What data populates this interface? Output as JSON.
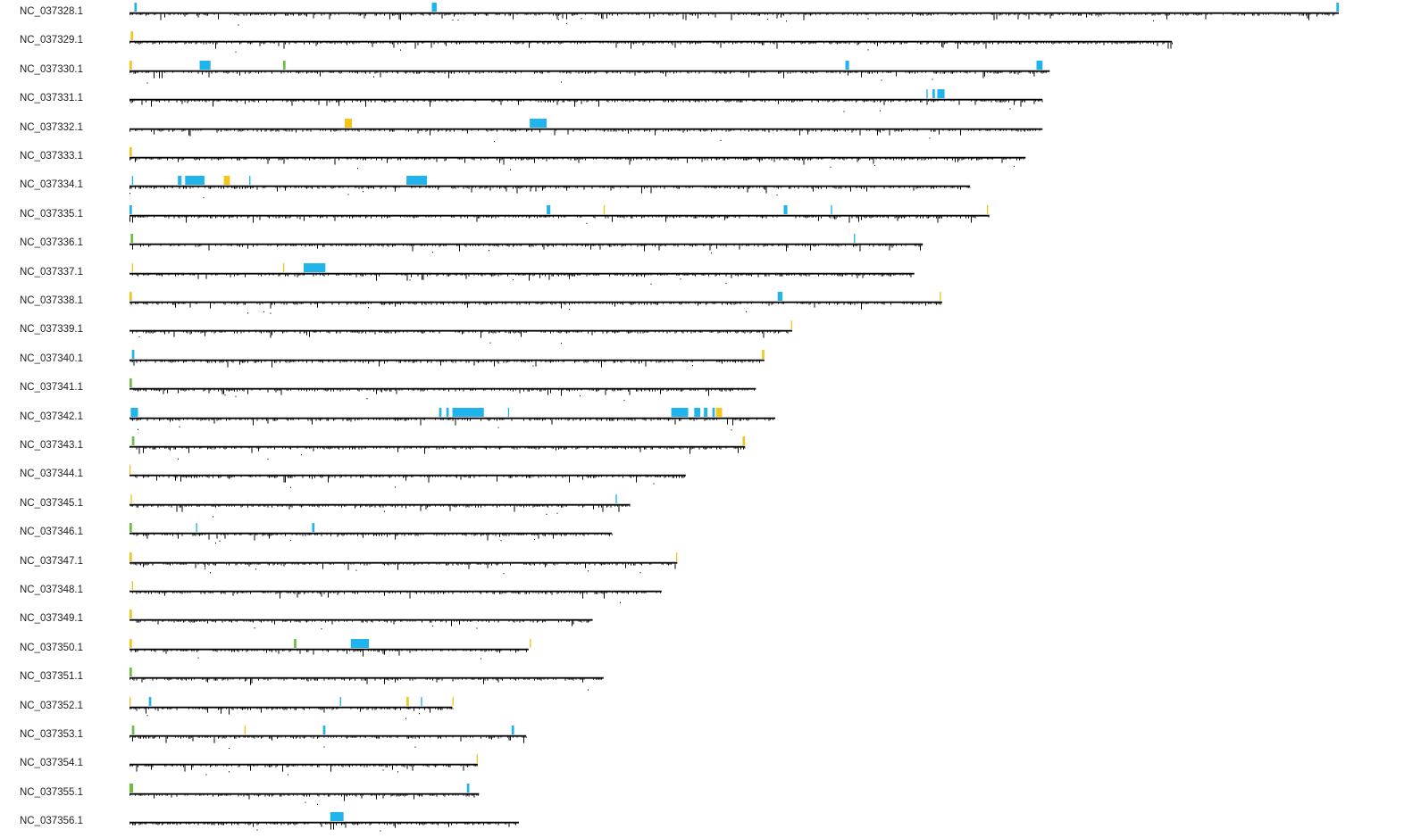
{
  "colors": {
    "axis": "#000000",
    "axis_shadow": "#bfbfbf",
    "depth_marks": "#000000",
    "feature_cyan": "#1fb4ec",
    "feature_yellow": "#f5c518",
    "feature_green": "#6abf3c"
  },
  "scale": {
    "max_length": 1
  },
  "chromosomes": [
    {
      "id": "NC_037328.1",
      "length": 1.0,
      "features": [
        {
          "s": 0.004,
          "e": 0.006,
          "c": "feature_cyan"
        },
        {
          "s": 0.25,
          "e": 0.254,
          "c": "feature_cyan"
        },
        {
          "s": 0.998,
          "e": 1.0,
          "c": "feature_cyan"
        }
      ]
    },
    {
      "id": "NC_037329.1",
      "length": 0.862,
      "features": [
        {
          "s": 0.001,
          "e": 0.003,
          "c": "feature_yellow"
        }
      ]
    },
    {
      "id": "NC_037330.1",
      "length": 0.761,
      "features": [
        {
          "s": 0.0,
          "e": 0.002,
          "c": "feature_yellow"
        },
        {
          "s": 0.058,
          "e": 0.067,
          "c": "feature_cyan"
        },
        {
          "s": 0.127,
          "e": 0.129,
          "c": "feature_green"
        },
        {
          "s": 0.592,
          "e": 0.595,
          "c": "feature_cyan"
        },
        {
          "s": 0.75,
          "e": 0.755,
          "c": "feature_cyan"
        }
      ]
    },
    {
      "id": "NC_037331.1",
      "length": 0.755,
      "features": [
        {
          "s": 0.659,
          "e": 0.66,
          "c": "feature_cyan"
        },
        {
          "s": 0.664,
          "e": 0.666,
          "c": "feature_cyan"
        },
        {
          "s": 0.668,
          "e": 0.674,
          "c": "feature_cyan"
        }
      ]
    },
    {
      "id": "NC_037332.1",
      "length": 0.755,
      "features": [
        {
          "s": 0.178,
          "e": 0.184,
          "c": "feature_yellow"
        },
        {
          "s": 0.331,
          "e": 0.345,
          "c": "feature_cyan"
        }
      ]
    },
    {
      "id": "NC_037333.1",
      "length": 0.741,
      "features": [
        {
          "s": 0.0,
          "e": 0.002,
          "c": "feature_yellow"
        }
      ]
    },
    {
      "id": "NC_037334.1",
      "length": 0.695,
      "features": [
        {
          "s": 0.002,
          "e": 0.003,
          "c": "feature_cyan"
        },
        {
          "s": 0.04,
          "e": 0.043,
          "c": "feature_cyan"
        },
        {
          "s": 0.046,
          "e": 0.062,
          "c": "feature_cyan"
        },
        {
          "s": 0.078,
          "e": 0.083,
          "c": "feature_yellow"
        },
        {
          "s": 0.099,
          "e": 0.1,
          "c": "feature_cyan"
        },
        {
          "s": 0.229,
          "e": 0.246,
          "c": "feature_cyan"
        }
      ]
    },
    {
      "id": "NC_037335.1",
      "length": 0.711,
      "features": [
        {
          "s": 0.0,
          "e": 0.002,
          "c": "feature_cyan"
        },
        {
          "s": 0.345,
          "e": 0.348,
          "c": "feature_cyan"
        },
        {
          "s": 0.392,
          "e": 0.393,
          "c": "feature_yellow"
        },
        {
          "s": 0.541,
          "e": 0.544,
          "c": "feature_cyan"
        },
        {
          "s": 0.58,
          "e": 0.581,
          "c": "feature_cyan"
        },
        {
          "s": 0.709,
          "e": 0.71,
          "c": "feature_yellow"
        }
      ]
    },
    {
      "id": "NC_037336.1",
      "length": 0.656,
      "features": [
        {
          "s": 0.001,
          "e": 0.003,
          "c": "feature_green"
        },
        {
          "s": 0.599,
          "e": 0.6,
          "c": "feature_cyan"
        }
      ]
    },
    {
      "id": "NC_037337.1",
      "length": 0.649,
      "features": [
        {
          "s": 0.002,
          "e": 0.003,
          "c": "feature_yellow"
        },
        {
          "s": 0.127,
          "e": 0.128,
          "c": "feature_yellow"
        },
        {
          "s": 0.144,
          "e": 0.162,
          "c": "feature_cyan"
        }
      ]
    },
    {
      "id": "NC_037338.1",
      "length": 0.672,
      "features": [
        {
          "s": 0.0,
          "e": 0.002,
          "c": "feature_yellow"
        },
        {
          "s": 0.536,
          "e": 0.54,
          "c": "feature_cyan"
        },
        {
          "s": 0.67,
          "e": 0.671,
          "c": "feature_yellow"
        }
      ]
    },
    {
      "id": "NC_037339.1",
      "length": 0.548,
      "features": [
        {
          "s": 0.547,
          "e": 0.548,
          "c": "feature_yellow"
        }
      ]
    },
    {
      "id": "NC_037340.1",
      "length": 0.525,
      "features": [
        {
          "s": 0.002,
          "e": 0.004,
          "c": "feature_cyan"
        },
        {
          "s": 0.523,
          "e": 0.525,
          "c": "feature_yellow"
        }
      ]
    },
    {
      "id": "NC_037341.1",
      "length": 0.518,
      "features": [
        {
          "s": 0.0,
          "e": 0.002,
          "c": "feature_green"
        }
      ]
    },
    {
      "id": "NC_037342.1",
      "length": 0.534,
      "features": [
        {
          "s": 0.001,
          "e": 0.007,
          "c": "feature_cyan"
        },
        {
          "s": 0.256,
          "e": 0.258,
          "c": "feature_cyan"
        },
        {
          "s": 0.262,
          "e": 0.264,
          "c": "feature_cyan"
        },
        {
          "s": 0.267,
          "e": 0.293,
          "c": "feature_cyan"
        },
        {
          "s": 0.313,
          "e": 0.314,
          "c": "feature_cyan"
        },
        {
          "s": 0.448,
          "e": 0.462,
          "c": "feature_cyan"
        },
        {
          "s": 0.467,
          "e": 0.472,
          "c": "feature_cyan"
        },
        {
          "s": 0.475,
          "e": 0.478,
          "c": "feature_cyan"
        },
        {
          "s": 0.482,
          "e": 0.484,
          "c": "feature_cyan"
        },
        {
          "s": 0.485,
          "e": 0.49,
          "c": "feature_yellow"
        }
      ]
    },
    {
      "id": "NC_037343.1",
      "length": 0.509,
      "features": [
        {
          "s": 0.002,
          "e": 0.004,
          "c": "feature_green"
        },
        {
          "s": 0.507,
          "e": 0.509,
          "c": "feature_yellow"
        }
      ]
    },
    {
      "id": "NC_037344.1",
      "length": 0.46,
      "features": [
        {
          "s": 0.0,
          "e": 0.001,
          "c": "feature_yellow"
        }
      ]
    },
    {
      "id": "NC_037345.1",
      "length": 0.414,
      "features": [
        {
          "s": 0.001,
          "e": 0.002,
          "c": "feature_yellow"
        },
        {
          "s": 0.402,
          "e": 0.403,
          "c": "feature_cyan"
        }
      ]
    },
    {
      "id": "NC_037346.1",
      "length": 0.399,
      "features": [
        {
          "s": 0.0,
          "e": 0.002,
          "c": "feature_green"
        },
        {
          "s": 0.055,
          "e": 0.056,
          "c": "feature_cyan"
        },
        {
          "s": 0.151,
          "e": 0.153,
          "c": "feature_cyan"
        }
      ]
    },
    {
      "id": "NC_037347.1",
      "length": 0.453,
      "features": [
        {
          "s": 0.0,
          "e": 0.002,
          "c": "feature_yellow"
        },
        {
          "s": 0.452,
          "e": 0.453,
          "c": "feature_yellow"
        }
      ]
    },
    {
      "id": "NC_037348.1",
      "length": 0.44,
      "features": [
        {
          "s": 0.002,
          "e": 0.003,
          "c": "feature_yellow"
        }
      ]
    },
    {
      "id": "NC_037349.1",
      "length": 0.383,
      "features": [
        {
          "s": 0.0,
          "e": 0.002,
          "c": "feature_yellow"
        }
      ]
    },
    {
      "id": "NC_037350.1",
      "length": 0.33,
      "features": [
        {
          "s": 0.0,
          "e": 0.002,
          "c": "feature_yellow"
        },
        {
          "s": 0.136,
          "e": 0.138,
          "c": "feature_green"
        },
        {
          "s": 0.183,
          "e": 0.198,
          "c": "feature_cyan"
        },
        {
          "s": 0.331,
          "e": 0.332,
          "c": "feature_yellow"
        }
      ]
    },
    {
      "id": "NC_037351.1",
      "length": 0.392,
      "features": [
        {
          "s": 0.0,
          "e": 0.002,
          "c": "feature_green"
        }
      ]
    },
    {
      "id": "NC_037352.1",
      "length": 0.267,
      "features": [
        {
          "s": 0.0,
          "e": 0.001,
          "c": "feature_yellow"
        },
        {
          "s": 0.016,
          "e": 0.018,
          "c": "feature_cyan"
        },
        {
          "s": 0.174,
          "e": 0.175,
          "c": "feature_cyan"
        },
        {
          "s": 0.229,
          "e": 0.231,
          "c": "feature_yellow"
        },
        {
          "s": 0.241,
          "e": 0.242,
          "c": "feature_cyan"
        },
        {
          "s": 0.267,
          "e": 0.268,
          "c": "feature_yellow"
        }
      ]
    },
    {
      "id": "NC_037353.1",
      "length": 0.328,
      "features": [
        {
          "s": 0.002,
          "e": 0.004,
          "c": "feature_green"
        },
        {
          "s": 0.095,
          "e": 0.096,
          "c": "feature_yellow"
        },
        {
          "s": 0.16,
          "e": 0.162,
          "c": "feature_cyan"
        },
        {
          "s": 0.316,
          "e": 0.318,
          "c": "feature_cyan"
        }
      ]
    },
    {
      "id": "NC_037354.1",
      "length": 0.288,
      "features": [
        {
          "s": 0.287,
          "e": 0.288,
          "c": "feature_yellow"
        }
      ]
    },
    {
      "id": "NC_037355.1",
      "length": 0.289,
      "features": [
        {
          "s": 0.0,
          "e": 0.003,
          "c": "feature_green"
        },
        {
          "s": 0.279,
          "e": 0.281,
          "c": "feature_cyan"
        }
      ]
    },
    {
      "id": "NC_037356.1",
      "length": 0.322,
      "features": [
        {
          "s": 0.166,
          "e": 0.177,
          "c": "feature_cyan"
        }
      ]
    }
  ]
}
